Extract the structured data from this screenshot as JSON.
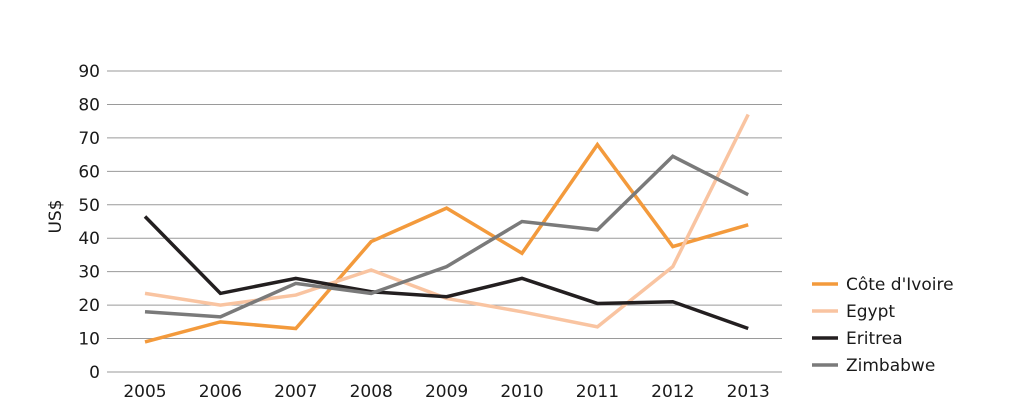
{
  "chart_data": {
    "type": "line",
    "title": "",
    "xlabel": "",
    "ylabel": "US$",
    "ylim": [
      0,
      90
    ],
    "yticks": [
      0,
      10,
      20,
      30,
      40,
      50,
      60,
      70,
      80,
      90
    ],
    "grid": true,
    "legend_position": "right",
    "categories": [
      "2005",
      "2006",
      "2007",
      "2008",
      "2009",
      "2010",
      "2011",
      "2012",
      "2013"
    ],
    "series": [
      {
        "name": "Côte d'Ivoire",
        "color": "#f39a3c",
        "values": [
          9,
          15,
          13,
          39,
          49,
          35.5,
          68,
          37.5,
          44
        ]
      },
      {
        "name": "Egypt",
        "color": "#f9c4a1",
        "values": [
          23.5,
          20,
          23,
          30.5,
          22,
          18,
          13.5,
          31.5,
          77
        ]
      },
      {
        "name": "Eritrea",
        "color": "#231f20",
        "values": [
          46.5,
          23.5,
          28,
          24,
          22.5,
          28,
          20.5,
          21,
          13
        ]
      },
      {
        "name": "Zimbabwe",
        "color": "#7a7a7a",
        "values": [
          18,
          16.5,
          26.5,
          23.5,
          31.5,
          45,
          42.5,
          64.5,
          53
        ]
      }
    ]
  }
}
